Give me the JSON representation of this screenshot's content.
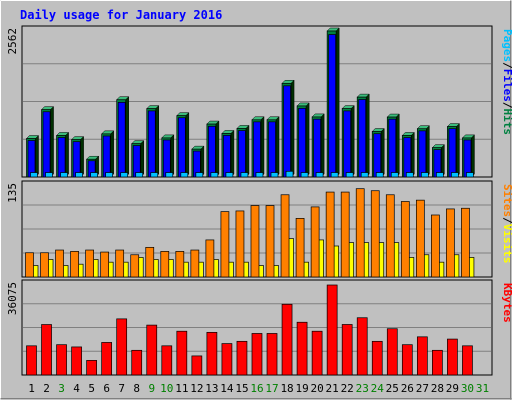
{
  "chart_data": [
    {
      "type": "bar",
      "title": "Daily usage for January 2016",
      "ylabel_parts": [
        {
          "text": "Pages",
          "color": "#00c0ff"
        },
        {
          "text": "/",
          "color": "#000000"
        },
        {
          "text": "Files",
          "color": "#0000ff"
        },
        {
          "text": "/",
          "color": "#000000"
        },
        {
          "text": "Hits",
          "color": "#008040"
        }
      ],
      "y_max_label": "2562",
      "ylim": [
        0,
        2562
      ],
      "categories": [
        "1",
        "2",
        "3",
        "4",
        "5",
        "6",
        "7",
        "8",
        "9",
        "10",
        "11",
        "12",
        "13",
        "14",
        "15",
        "16",
        "17",
        "18",
        "19",
        "20",
        "21",
        "22",
        "23",
        "24",
        "25",
        "26",
        "27",
        "28",
        "29",
        "30",
        "31"
      ],
      "series": [
        {
          "name": "Hits",
          "color": "#008040",
          "values": [
            675,
            1182,
            729,
            656,
            312,
            757,
            1356,
            585,
            1200,
            686,
            1077,
            489,
            929,
            764,
            852,
            1004,
            1004,
            1644,
            1247,
            1054,
            2562,
            1200,
            1402,
            798,
            1052,
            729,
            847,
            515,
            885,
            686,
            0
          ]
        },
        {
          "name": "Files",
          "color": "#0000ff",
          "values": [
            640,
            1145,
            693,
            620,
            285,
            720,
            1310,
            552,
            1160,
            650,
            1040,
            455,
            890,
            730,
            815,
            968,
            968,
            1600,
            1205,
            1015,
            2500,
            1160,
            1360,
            760,
            1015,
            692,
            810,
            480,
            848,
            650,
            0
          ]
        },
        {
          "name": "Pages",
          "color": "#00c0ff",
          "values": [
            78,
            78,
            78,
            78,
            78,
            78,
            78,
            78,
            78,
            78,
            78,
            78,
            78,
            78,
            78,
            78,
            78,
            100,
            78,
            78,
            78,
            78,
            78,
            78,
            78,
            78,
            78,
            78,
            78,
            78,
            0
          ]
        }
      ]
    },
    {
      "type": "bar",
      "ylabel_parts": [
        {
          "text": "Sites",
          "color": "#ff8000"
        },
        {
          "text": "/",
          "color": "#000000"
        },
        {
          "text": "Visits",
          "color": "#ffff00"
        }
      ],
      "y_max_label": "135",
      "ylim": [
        0,
        135
      ],
      "categories": [
        "1",
        "2",
        "3",
        "4",
        "5",
        "6",
        "7",
        "8",
        "9",
        "10",
        "11",
        "12",
        "13",
        "14",
        "15",
        "16",
        "17",
        "18",
        "19",
        "20",
        "21",
        "22",
        "23",
        "24",
        "25",
        "26",
        "27",
        "28",
        "29",
        "30",
        "31"
      ],
      "series": [
        {
          "name": "Visits",
          "color": "#ffff00",
          "values": [
            17,
            26,
            17,
            19,
            26,
            22,
            22,
            29,
            26,
            26,
            22,
            22,
            26,
            22,
            22,
            17,
            17,
            57,
            22,
            55,
            46,
            51,
            51,
            51,
            51,
            29,
            33,
            22,
            33,
            29,
            0
          ]
        },
        {
          "name": "Sites",
          "color": "#ff8000",
          "values": [
            36,
            36,
            40,
            38,
            40,
            37,
            40,
            33,
            44,
            38,
            38,
            40,
            55,
            97,
            98,
            106,
            106,
            122,
            87,
            104,
            126,
            126,
            131,
            128,
            122,
            112,
            114,
            92,
            101,
            102,
            0
          ]
        }
      ]
    },
    {
      "type": "bar",
      "ylabel_parts": [
        {
          "text": "KBytes",
          "color": "#ff0000"
        }
      ],
      "y_max_label": "36075",
      "ylim": [
        0,
        36075
      ],
      "categories": [
        "1",
        "2",
        "3",
        "4",
        "5",
        "6",
        "7",
        "8",
        "9",
        "10",
        "11",
        "12",
        "13",
        "14",
        "15",
        "16",
        "17",
        "18",
        "19",
        "20",
        "21",
        "22",
        "23",
        "24",
        "25",
        "26",
        "27",
        "28",
        "29",
        "30",
        "31"
      ],
      "series": [
        {
          "name": "KBytes",
          "color": "#ff0000",
          "values": [
            11700,
            20230,
            12150,
            11250,
            5850,
            13050,
            22500,
            9900,
            20000,
            11700,
            17550,
            7650,
            17100,
            12600,
            13500,
            16650,
            16650,
            28350,
            21150,
            17550,
            36075,
            20250,
            22950,
            13500,
            18550,
            12150,
            15300,
            9900,
            14400,
            11700,
            0
          ]
        }
      ]
    }
  ],
  "x_labels": [
    {
      "text": "1",
      "color": "#000000"
    },
    {
      "text": "2",
      "color": "#000000"
    },
    {
      "text": "3",
      "color": "#008000"
    },
    {
      "text": "4",
      "color": "#000000"
    },
    {
      "text": "5",
      "color": "#000000"
    },
    {
      "text": "6",
      "color": "#000000"
    },
    {
      "text": "7",
      "color": "#000000"
    },
    {
      "text": "8",
      "color": "#000000"
    },
    {
      "text": "9",
      "color": "#008000"
    },
    {
      "text": "10",
      "color": "#008000"
    },
    {
      "text": "11",
      "color": "#000000"
    },
    {
      "text": "12",
      "color": "#000000"
    },
    {
      "text": "13",
      "color": "#000000"
    },
    {
      "text": "14",
      "color": "#000000"
    },
    {
      "text": "15",
      "color": "#000000"
    },
    {
      "text": "16",
      "color": "#008000"
    },
    {
      "text": "17",
      "color": "#008000"
    },
    {
      "text": "18",
      "color": "#000000"
    },
    {
      "text": "19",
      "color": "#000000"
    },
    {
      "text": "20",
      "color": "#000000"
    },
    {
      "text": "21",
      "color": "#000000"
    },
    {
      "text": "22",
      "color": "#000000"
    },
    {
      "text": "23",
      "color": "#008000"
    },
    {
      "text": "24",
      "color": "#008000"
    },
    {
      "text": "25",
      "color": "#000000"
    },
    {
      "text": "26",
      "color": "#000000"
    },
    {
      "text": "27",
      "color": "#000000"
    },
    {
      "text": "28",
      "color": "#000000"
    },
    {
      "text": "29",
      "color": "#000000"
    },
    {
      "text": "30",
      "color": "#008000"
    },
    {
      "text": "31",
      "color": "#008000"
    }
  ],
  "colors": {
    "background": "#c0c0c0",
    "title": "#0000ff",
    "gridline": "#808080"
  }
}
